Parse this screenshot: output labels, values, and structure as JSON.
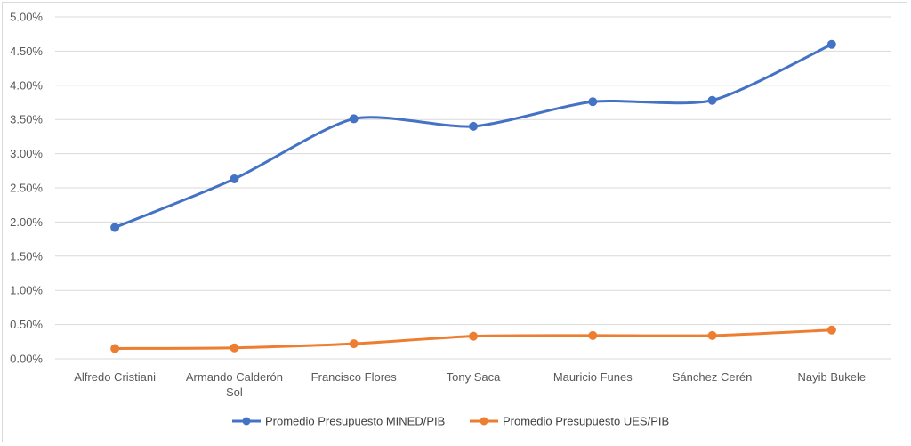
{
  "chart_data": {
    "type": "line",
    "title": "",
    "xlabel": "",
    "ylabel": "",
    "categories": [
      [
        "Alfredo Cristiani"
      ],
      [
        "Armando Calderón",
        "Sol"
      ],
      [
        "Francisco Flores"
      ],
      [
        "Tony Saca"
      ],
      [
        "Mauricio Funes"
      ],
      [
        "Sánchez Cerén"
      ],
      [
        "Nayib Bukele"
      ]
    ],
    "ylim": [
      0,
      0.05
    ],
    "yticks": [
      0,
      0.005,
      0.01,
      0.015,
      0.02,
      0.025,
      0.03,
      0.035,
      0.04,
      0.045,
      0.05
    ],
    "ytick_labels": [
      "0.00%",
      "0.50%",
      "1.00%",
      "1.50%",
      "2.00%",
      "2.50%",
      "3.00%",
      "3.50%",
      "4.00%",
      "4.50%",
      "5.00%"
    ],
    "grid": true,
    "legend_position": "bottom",
    "series": [
      {
        "name": "Promedio Presupuesto MINED/PIB",
        "color": "#4472c4",
        "values": [
          0.0192,
          0.0263,
          0.0351,
          0.034,
          0.0376,
          0.0378,
          0.046
        ]
      },
      {
        "name": "Promedio Presupuesto UES/PIB",
        "color": "#ed7d31",
        "values": [
          0.0015,
          0.0016,
          0.0022,
          0.0033,
          0.0034,
          0.0034,
          0.0042
        ]
      }
    ]
  }
}
